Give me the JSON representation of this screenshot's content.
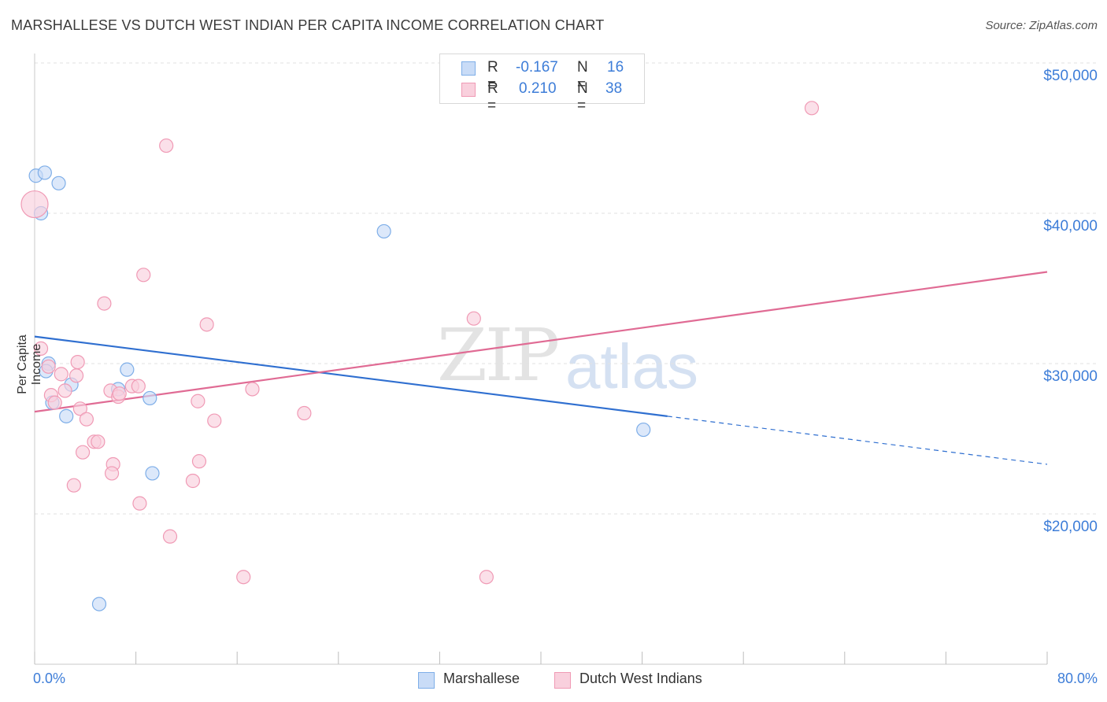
{
  "header": {
    "title": "MARSHALLESE VS DUTCH WEST INDIAN PER CAPITA INCOME CORRELATION CHART",
    "source": "Source: ZipAtlas.com"
  },
  "watermark": {
    "zip": "ZIP",
    "atlas": "atlas"
  },
  "stats": {
    "rows": [
      {
        "r_label": "R =",
        "r_value": "-0.167",
        "n_label": "N =",
        "n_value": "16",
        "color": "#aecbf5"
      },
      {
        "r_label": "R =",
        "r_value": "0.210",
        "n_label": "N =",
        "n_value": "38",
        "color": "#f7bccd"
      }
    ]
  },
  "legend": {
    "items": [
      {
        "label": "Marshallese",
        "color": "#aecbf5"
      },
      {
        "label": "Dutch West Indians",
        "color": "#f7bccd"
      }
    ]
  },
  "chart_data": {
    "type": "scatter",
    "title": "MARSHALLESE VS DUTCH WEST INDIAN PER CAPITA INCOME CORRELATION CHART",
    "xlabel": "",
    "ylabel": "Per Capita Income",
    "xlim": [
      0,
      80
    ],
    "ylim": [
      10000,
      51000
    ],
    "x_tick_labels": [
      "0.0%",
      "80.0%"
    ],
    "y_ticks": [
      20000,
      30000,
      40000,
      50000
    ],
    "y_tick_labels": [
      "$20,000",
      "$30,000",
      "$40,000",
      "$50,000"
    ],
    "grid": true,
    "legend_position": "bottom-center",
    "series": [
      {
        "name": "Marshallese",
        "color": "#7eaee8",
        "fill": "#c9dcf7",
        "line_color": "#2f6fd0",
        "trend": {
          "x0": 0,
          "y0": 31800,
          "x1": 50,
          "y1": 26500,
          "x_dash_end": 80,
          "y_dash_end": 23300
        },
        "points": [
          {
            "x": 0.1,
            "y": 42500,
            "size": 1
          },
          {
            "x": 0.8,
            "y": 42700,
            "size": 1
          },
          {
            "x": 1.9,
            "y": 42000,
            "size": 1
          },
          {
            "x": 0.5,
            "y": 40000,
            "size": 1
          },
          {
            "x": 1.1,
            "y": 30000,
            "size": 1
          },
          {
            "x": 0.9,
            "y": 29500,
            "size": 1
          },
          {
            "x": 2.9,
            "y": 28600,
            "size": 1
          },
          {
            "x": 1.4,
            "y": 27400,
            "size": 1
          },
          {
            "x": 2.5,
            "y": 26500,
            "size": 1
          },
          {
            "x": 7.3,
            "y": 29600,
            "size": 1
          },
          {
            "x": 6.6,
            "y": 28300,
            "size": 1
          },
          {
            "x": 9.1,
            "y": 27700,
            "size": 1
          },
          {
            "x": 9.3,
            "y": 22700,
            "size": 1
          },
          {
            "x": 5.1,
            "y": 14000,
            "size": 1
          },
          {
            "x": 27.6,
            "y": 38800,
            "size": 1
          },
          {
            "x": 48.1,
            "y": 25600,
            "size": 1
          }
        ]
      },
      {
        "name": "Dutch West Indians",
        "color": "#f09ab5",
        "fill": "#f9d0dd",
        "line_color": "#e06b94",
        "trend": {
          "x0": 0,
          "y0": 26800,
          "x1": 80,
          "y1": 36100
        },
        "points": [
          {
            "x": 0.0,
            "y": 40600,
            "size": 2
          },
          {
            "x": 0.5,
            "y": 31000,
            "size": 1
          },
          {
            "x": 1.1,
            "y": 29800,
            "size": 1
          },
          {
            "x": 1.3,
            "y": 27900,
            "size": 1
          },
          {
            "x": 1.6,
            "y": 27400,
            "size": 1
          },
          {
            "x": 3.3,
            "y": 29200,
            "size": 1
          },
          {
            "x": 2.4,
            "y": 28200,
            "size": 1
          },
          {
            "x": 3.4,
            "y": 30100,
            "size": 1
          },
          {
            "x": 3.6,
            "y": 27000,
            "size": 1
          },
          {
            "x": 4.1,
            "y": 26300,
            "size": 1
          },
          {
            "x": 3.8,
            "y": 24100,
            "size": 1
          },
          {
            "x": 4.7,
            "y": 24800,
            "size": 1
          },
          {
            "x": 5.0,
            "y": 24800,
            "size": 1
          },
          {
            "x": 5.5,
            "y": 34000,
            "size": 1
          },
          {
            "x": 6.0,
            "y": 28200,
            "size": 1
          },
          {
            "x": 6.6,
            "y": 27800,
            "size": 1
          },
          {
            "x": 6.2,
            "y": 23300,
            "size": 1
          },
          {
            "x": 6.1,
            "y": 22700,
            "size": 1
          },
          {
            "x": 3.1,
            "y": 21900,
            "size": 1
          },
          {
            "x": 7.7,
            "y": 28500,
            "size": 1
          },
          {
            "x": 8.2,
            "y": 28500,
            "size": 1
          },
          {
            "x": 8.3,
            "y": 20700,
            "size": 1
          },
          {
            "x": 8.6,
            "y": 35900,
            "size": 1
          },
          {
            "x": 10.4,
            "y": 44500,
            "size": 1
          },
          {
            "x": 10.7,
            "y": 18500,
            "size": 1
          },
          {
            "x": 12.9,
            "y": 27500,
            "size": 1
          },
          {
            "x": 12.5,
            "y": 22200,
            "size": 1
          },
          {
            "x": 13.0,
            "y": 23500,
            "size": 1
          },
          {
            "x": 13.6,
            "y": 32600,
            "size": 1
          },
          {
            "x": 14.2,
            "y": 26200,
            "size": 1
          },
          {
            "x": 16.5,
            "y": 15800,
            "size": 1
          },
          {
            "x": 17.2,
            "y": 28300,
            "size": 1
          },
          {
            "x": 21.3,
            "y": 26700,
            "size": 1
          },
          {
            "x": 34.7,
            "y": 33000,
            "size": 1
          },
          {
            "x": 35.7,
            "y": 15800,
            "size": 1
          },
          {
            "x": 61.4,
            "y": 47000,
            "size": 1
          },
          {
            "x": 2.1,
            "y": 29300,
            "size": 1
          },
          {
            "x": 6.7,
            "y": 28000,
            "size": 1
          }
        ]
      }
    ]
  }
}
